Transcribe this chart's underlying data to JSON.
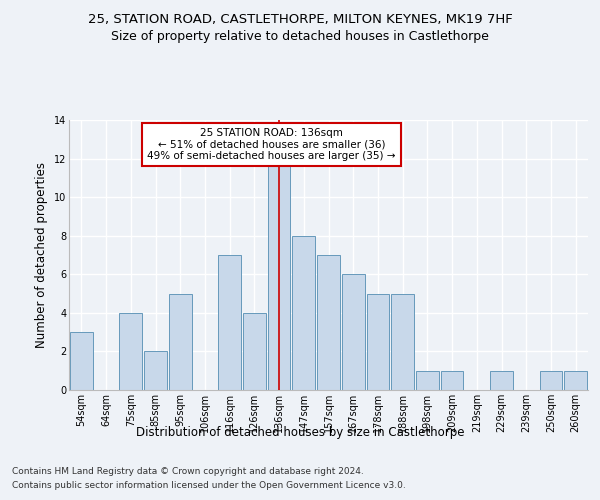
{
  "title_line1": "25, STATION ROAD, CASTLETHORPE, MILTON KEYNES, MK19 7HF",
  "title_line2": "Size of property relative to detached houses in Castlethorpe",
  "xlabel": "Distribution of detached houses by size in Castlethorpe",
  "ylabel": "Number of detached properties",
  "categories": [
    "54sqm",
    "64sqm",
    "75sqm",
    "85sqm",
    "95sqm",
    "106sqm",
    "116sqm",
    "126sqm",
    "136sqm",
    "147sqm",
    "157sqm",
    "167sqm",
    "178sqm",
    "188sqm",
    "198sqm",
    "209sqm",
    "219sqm",
    "229sqm",
    "239sqm",
    "250sqm",
    "260sqm"
  ],
  "values": [
    3,
    0,
    4,
    2,
    5,
    0,
    7,
    4,
    12,
    8,
    7,
    6,
    5,
    5,
    1,
    1,
    0,
    1,
    0,
    1,
    1
  ],
  "bar_color": "#c8d8ea",
  "bar_edge_color": "#6699bb",
  "highlight_index": 8,
  "highlight_line_color": "#cc0000",
  "annotation_text": "25 STATION ROAD: 136sqm\n← 51% of detached houses are smaller (36)\n49% of semi-detached houses are larger (35) →",
  "annotation_box_color": "#ffffff",
  "annotation_box_edge_color": "#cc0000",
  "ylim": [
    0,
    14
  ],
  "yticks": [
    0,
    2,
    4,
    6,
    8,
    10,
    12,
    14
  ],
  "footer_line1": "Contains HM Land Registry data © Crown copyright and database right 2024.",
  "footer_line2": "Contains public sector information licensed under the Open Government Licence v3.0.",
  "bg_color": "#eef2f7",
  "plot_bg_color": "#eef2f7",
  "grid_color": "#ffffff",
  "title_fontsize": 9.5,
  "subtitle_fontsize": 9,
  "ylabel_fontsize": 8.5,
  "xlabel_fontsize": 8.5,
  "tick_fontsize": 7,
  "annotation_fontsize": 7.5,
  "footer_fontsize": 6.5
}
